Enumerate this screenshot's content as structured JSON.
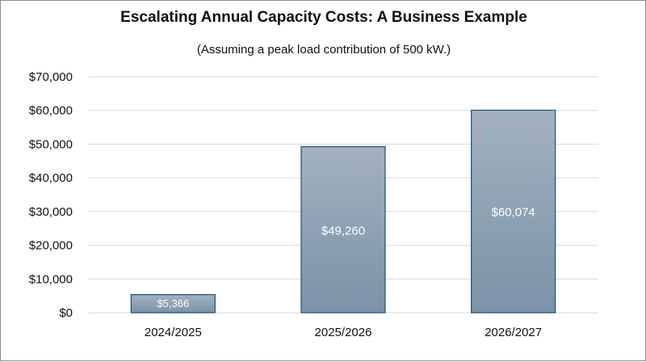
{
  "chart_data": {
    "type": "bar",
    "title": "Escalating Annual Capacity Costs: A Business Example",
    "subtitle": "(Assuming a peak load contribution of 500 kW.)",
    "categories": [
      "2024/2025",
      "2025/2026",
      "2026/2027"
    ],
    "values": [
      5366,
      49260,
      60074
    ],
    "data_labels": [
      "$5,366",
      "$49,260",
      "$60,074"
    ],
    "ylim": [
      0,
      70000
    ],
    "yticks": [
      0,
      10000,
      20000,
      30000,
      40000,
      50000,
      60000,
      70000
    ],
    "ytick_labels": [
      "$0",
      "$10,000",
      "$20,000",
      "$30,000",
      "$40,000",
      "$50,000",
      "$60,000",
      "$70,000"
    ],
    "xlabel": "",
    "ylabel": "",
    "grid": true,
    "legend": "none",
    "colors": {
      "bar_top": "#a3b2c0",
      "bar_bottom": "#7a92a8",
      "bar_border": "#1f4e6e",
      "grid": "#d9d9d9",
      "text": "#111111"
    }
  }
}
